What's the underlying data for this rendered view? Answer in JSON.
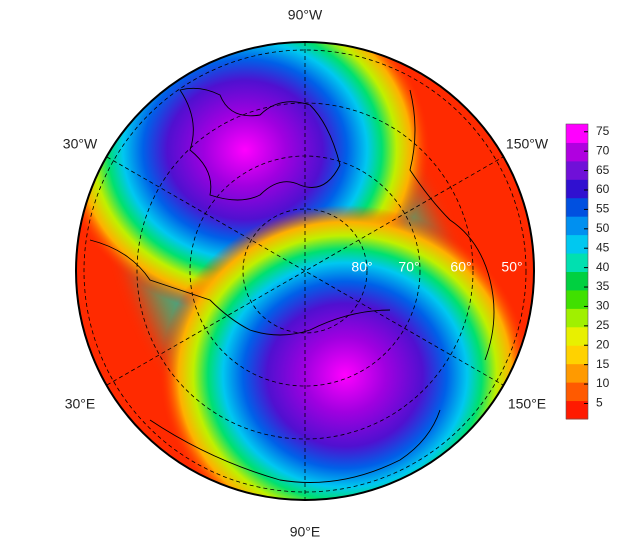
{
  "map": {
    "longitude_labels": [
      "90°W",
      "30°W",
      "150°W",
      "30°E",
      "150°E",
      "90°E"
    ],
    "latitude_labels": [
      "80°",
      "70°",
      "60°",
      "50°"
    ],
    "colorbar": {
      "ylim": [
        1,
        77
      ],
      "yticks": [
        5,
        10,
        15,
        20,
        25,
        30,
        35,
        40,
        45,
        50,
        55,
        60,
        65,
        70,
        75
      ],
      "colors": [
        "#ff1a00",
        "#ff5a00",
        "#ff9a00",
        "#ffd200",
        "#e8f000",
        "#a0f000",
        "#40e000",
        "#00d040",
        "#00e0b0",
        "#00c8f0",
        "#0090f0",
        "#0050e0",
        "#3010d0",
        "#7010d8",
        "#b000e0",
        "#ff00ff"
      ]
    }
  }
}
